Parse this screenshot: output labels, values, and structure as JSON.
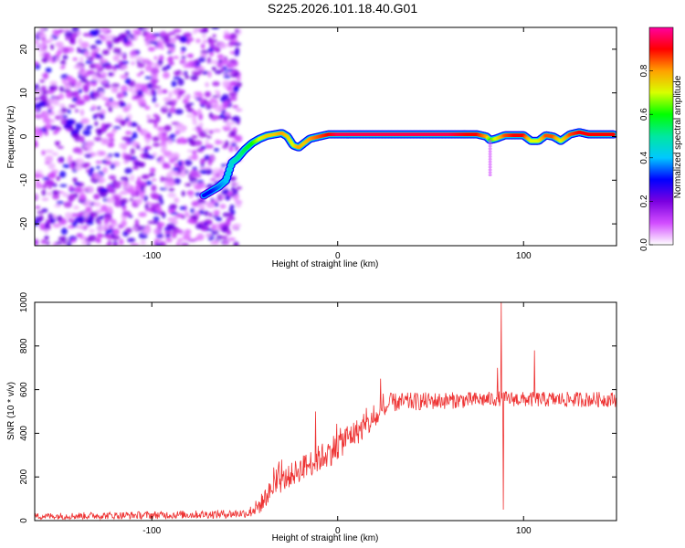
{
  "title": "S225.2026.101.18.40.G01",
  "chart_data": [
    {
      "type": "heatmap",
      "name": "spectrogram",
      "xlabel": "Height of straight line (km)",
      "ylabel": "Frequency (Hz)",
      "xlim": [
        -163,
        150
      ],
      "ylim": [
        -25,
        25
      ],
      "xticks": [
        -100,
        0,
        100
      ],
      "yticks": [
        -20,
        -10,
        0,
        10,
        20
      ],
      "noise_region": {
        "x_range": [
          -163,
          -53
        ],
        "y_range": [
          -25,
          25
        ]
      },
      "trace": {
        "x": [
          -72,
          -68,
          -64,
          -60,
          -57,
          -54,
          -50,
          -46,
          -42,
          -38,
          -34,
          -30,
          -27,
          -24,
          -21,
          -18,
          -15,
          -10,
          -5,
          0,
          10,
          20,
          30,
          40,
          50,
          60,
          70,
          75,
          80,
          82,
          85,
          90,
          95,
          100,
          104,
          108,
          112,
          116,
          120,
          125,
          130,
          135,
          140,
          145,
          149
        ],
        "y": [
          -13.5,
          -12.5,
          -11.5,
          -10,
          -6,
          -5,
          -3,
          -1.5,
          -0.5,
          0.2,
          0.5,
          0.8,
          0,
          -2,
          -2.5,
          -1.5,
          -0.5,
          0,
          0.5,
          0.5,
          0.5,
          0.5,
          0.5,
          0.5,
          0.5,
          0.5,
          0.5,
          0.5,
          0,
          -0.8,
          -0.5,
          0.3,
          0.3,
          0.3,
          -1,
          -1,
          0.3,
          0,
          -1,
          0.5,
          1,
          0.5,
          0.5,
          0.5,
          0.5
        ],
        "amplitude": [
          0.3,
          0.3,
          0.35,
          0.4,
          0.45,
          0.5,
          0.55,
          0.6,
          0.7,
          0.75,
          0.75,
          0.8,
          0.75,
          0.7,
          0.8,
          0.75,
          0.8,
          0.85,
          0.9,
          0.95,
          0.95,
          0.95,
          0.95,
          0.95,
          0.95,
          0.95,
          0.9,
          0.9,
          0.8,
          0.6,
          0.7,
          0.85,
          0.9,
          0.9,
          0.7,
          0.7,
          0.85,
          0.85,
          0.7,
          0.85,
          0.9,
          0.9,
          0.9,
          0.9,
          0.9
        ]
      },
      "colorbar": {
        "label": "Normalized spectral amplitude",
        "range": [
          0,
          1
        ],
        "ticks": [
          0.0,
          0.2,
          0.4,
          0.6,
          0.8
        ],
        "tick_labels": [
          "0.0",
          "0.2",
          "0.4",
          "0.6",
          "0.8"
        ],
        "colors": [
          "#ffffff",
          "#d24dff",
          "#7a00e0",
          "#0000ff",
          "#00c8ff",
          "#00e8a0",
          "#00ff00",
          "#d8ff00",
          "#ffa000",
          "#ff0000",
          "#ff00a0"
        ]
      }
    },
    {
      "type": "line",
      "name": "snr",
      "xlabel": "Height of straight line (km)",
      "ylabel": "SNR (10 * v/v)",
      "xlim": [
        -163,
        150
      ],
      "ylim": [
        0,
        1000
      ],
      "xticks": [
        -100,
        0,
        100
      ],
      "yticks": [
        0,
        200,
        400,
        600,
        800,
        1000
      ],
      "color": "#ee3333",
      "envelope": {
        "x": [
          -163,
          -100,
          -60,
          -48,
          -42,
          -35,
          -25,
          -15,
          -5,
          5,
          15,
          25,
          28,
          40,
          60,
          80,
          88,
          100,
          120,
          150
        ],
        "y": [
          20,
          25,
          30,
          35,
          70,
          150,
          210,
          260,
          310,
          380,
          430,
          500,
          540,
          545,
          550,
          555,
          560,
          555,
          555,
          555
        ]
      },
      "noise": {
        "x": [
          -163,
          -50,
          -40,
          0,
          25,
          80,
          150
        ],
        "y": [
          15,
          20,
          45,
          70,
          45,
          35,
          35
        ]
      },
      "spikes": [
        {
          "x": -12,
          "y": 500
        },
        {
          "x": 23,
          "y": 650
        },
        {
          "x": 86,
          "y": 700
        },
        {
          "x": 88,
          "y": 1000
        },
        {
          "x": 89,
          "y": 50
        },
        {
          "x": 106,
          "y": 780
        }
      ]
    }
  ]
}
